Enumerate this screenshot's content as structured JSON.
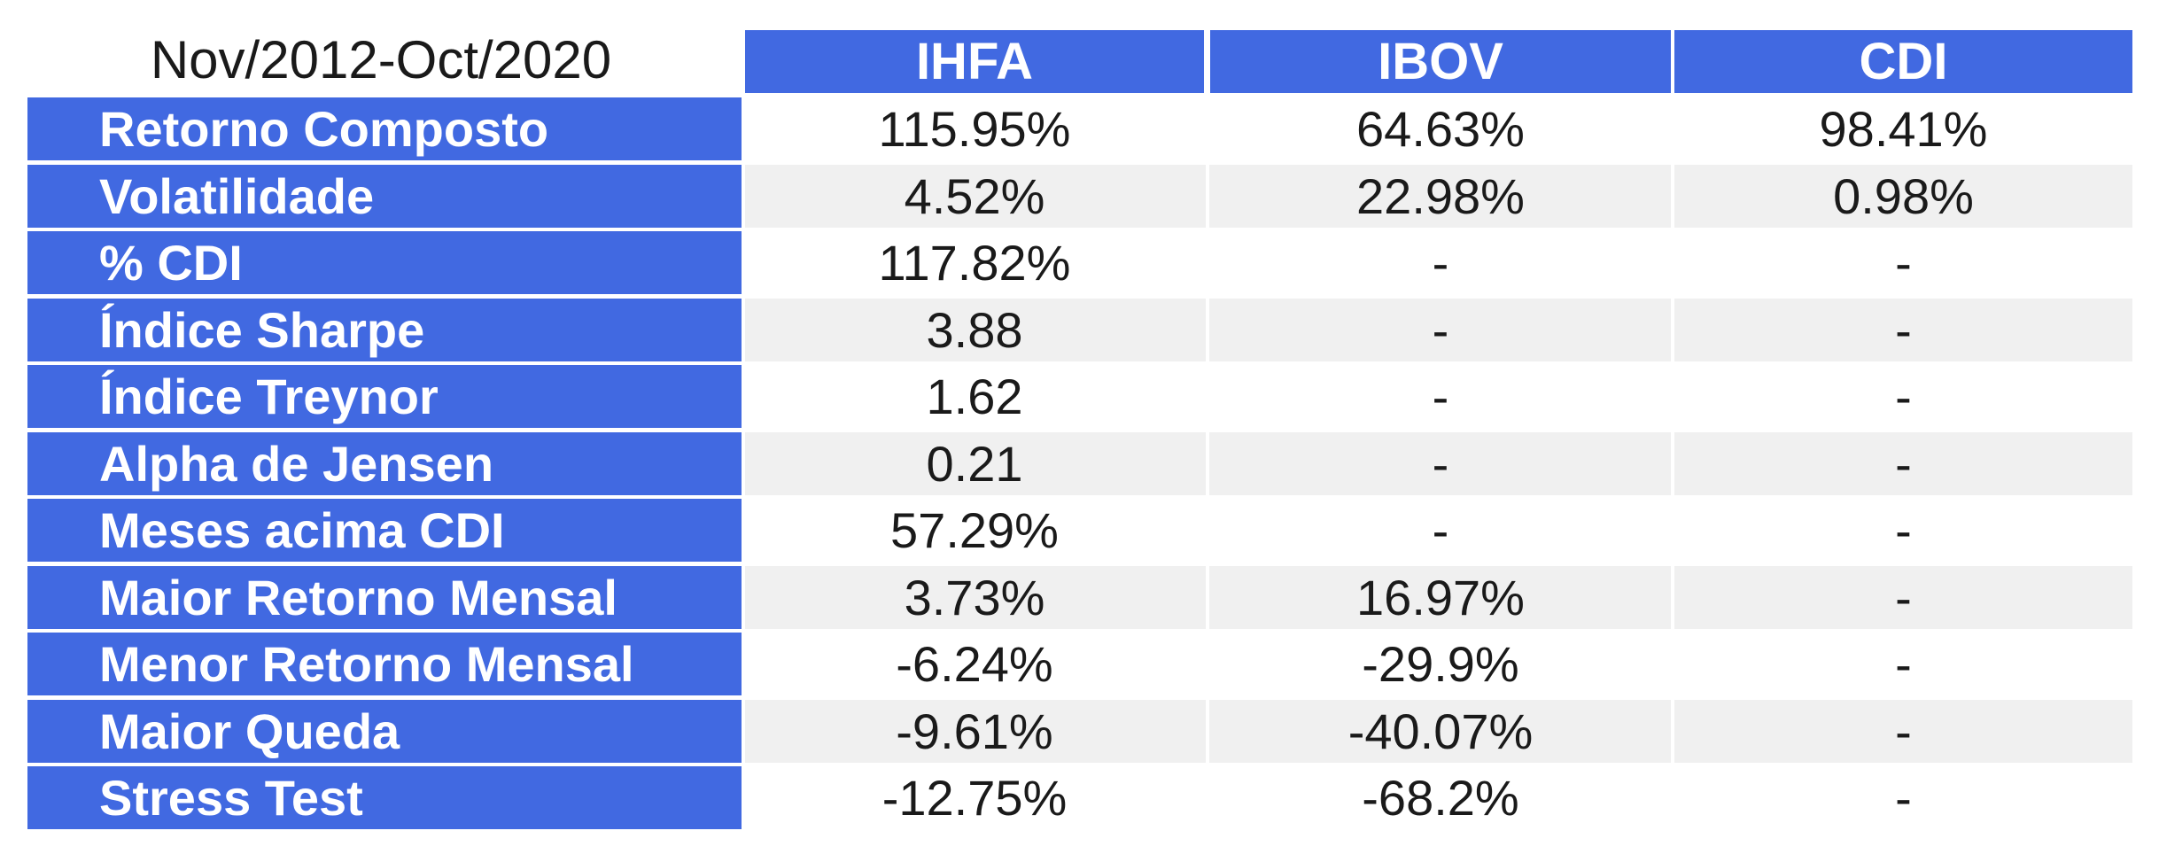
{
  "chart_data": {
    "type": "table",
    "period": "Nov/2012-Oct/2020",
    "columns": [
      "IHFA",
      "IBOV",
      "CDI"
    ],
    "rows": [
      {
        "label": "Retorno Composto",
        "values": [
          "115.95%",
          "64.63%",
          "98.41%"
        ]
      },
      {
        "label": "Volatilidade",
        "values": [
          "4.52%",
          "22.98%",
          "0.98%"
        ]
      },
      {
        "label": "% CDI",
        "values": [
          "117.82%",
          "-",
          "-"
        ]
      },
      {
        "label": "Índice Sharpe",
        "values": [
          "3.88",
          "-",
          "-"
        ]
      },
      {
        "label": "Índice Treynor",
        "values": [
          "1.62",
          "-",
          "-"
        ]
      },
      {
        "label": "Alpha de Jensen",
        "values": [
          "0.21",
          "-",
          "-"
        ]
      },
      {
        "label": "Meses acima CDI",
        "values": [
          "57.29%",
          "-",
          "-"
        ]
      },
      {
        "label": "Maior Retorno Mensal",
        "values": [
          "3.73%",
          "16.97%",
          "-"
        ]
      },
      {
        "label": "Menor Retorno Mensal",
        "values": [
          "-6.24%",
          "-29.9%",
          "-"
        ]
      },
      {
        "label": "Maior Queda",
        "values": [
          "-9.61%",
          "-40.07%",
          "-"
        ]
      },
      {
        "label": "Stress Test",
        "values": [
          "-12.75%",
          "-68.2%",
          "-"
        ]
      }
    ],
    "colors": {
      "header_fill": "#4169e1",
      "header_text": "#ffffff",
      "band_fill": "#f0f0f0",
      "cell_text": "#1a1a1a"
    }
  }
}
